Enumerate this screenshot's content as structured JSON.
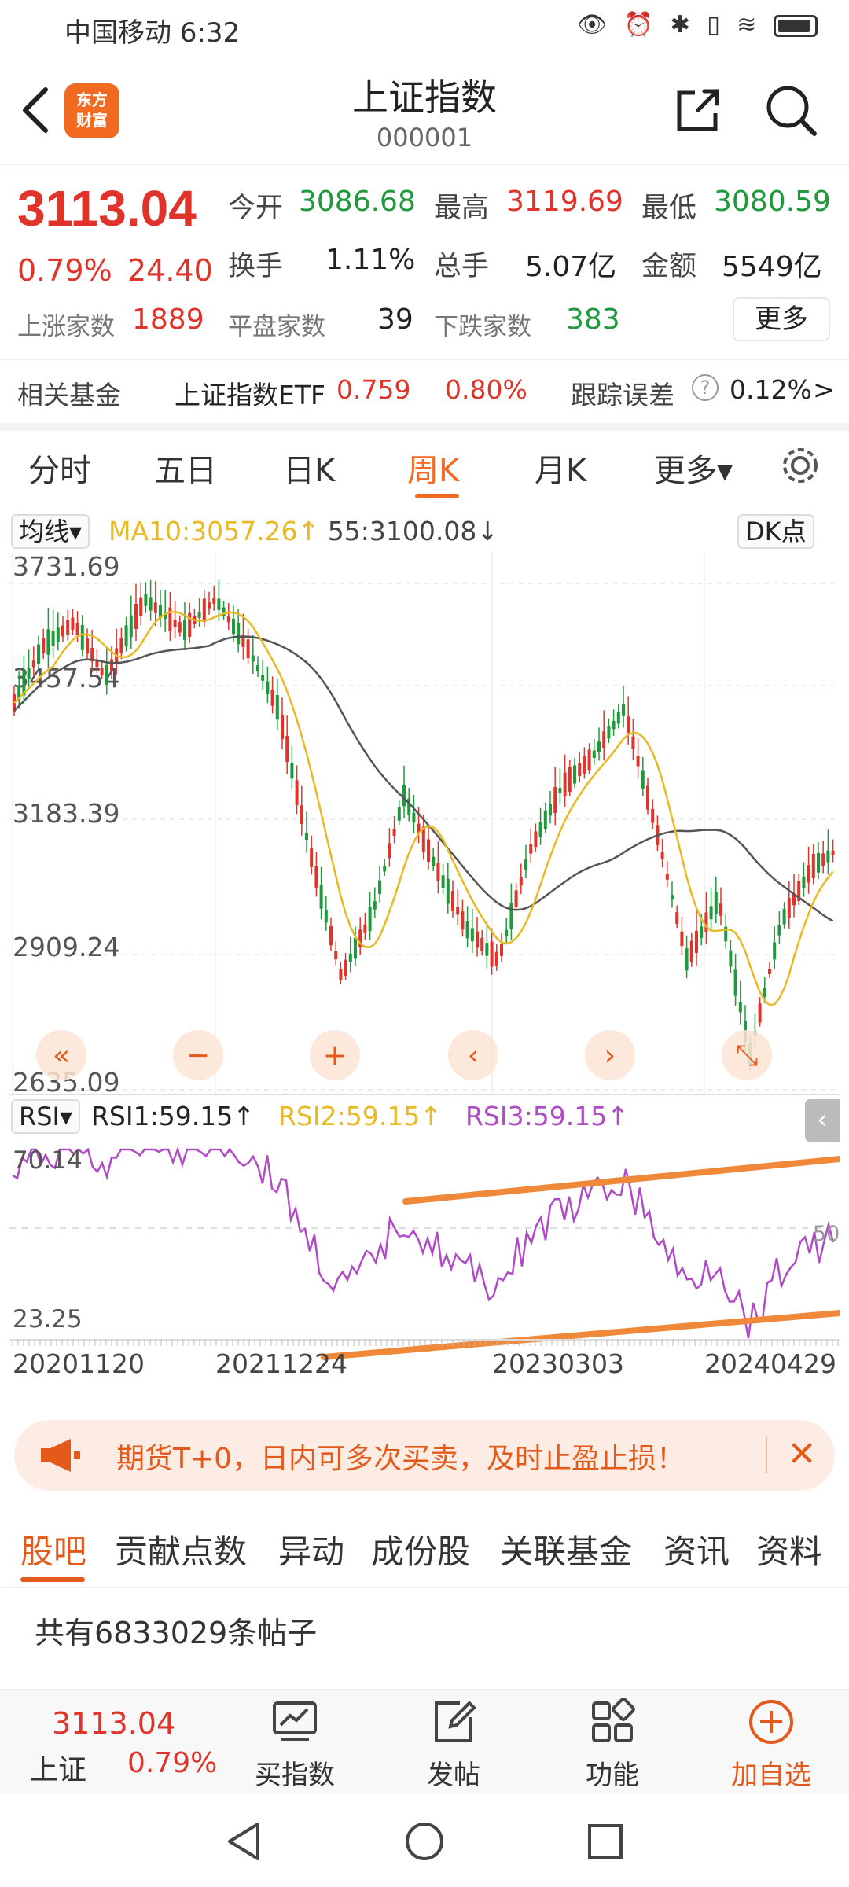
{
  "status_bar": {
    "carrier_time": "中国移动 6:32",
    "icons": "👁 ⏰ ✱ ▯ ≋"
  },
  "header": {
    "logo_line1": "东方",
    "logo_line2": "财富",
    "title": "上证指数",
    "code": "000001"
  },
  "quote": {
    "price": "3113.04",
    "change_pct": "0.79%",
    "change_abs": "24.40",
    "open_label": "今开",
    "open_value": "3086.68",
    "high_label": "最高",
    "high_value": "3119.69",
    "low_label": "最低",
    "low_value": "3080.59",
    "turnover_label": "换手",
    "turnover_value": "1.11%",
    "volume_label": "总手",
    "volume_value": "5.07亿",
    "amount_label": "金额",
    "amount_value": "5549亿",
    "up_label": "上涨家数",
    "up_value": "1889",
    "flat_label": "平盘家数",
    "flat_value": "39",
    "down_label": "下跌家数",
    "down_value": "383",
    "more_label": "更多"
  },
  "fund": {
    "label": "相关基金",
    "name": "上证指数ETF",
    "price": "0.759",
    "pct": "0.80%",
    "tracking_label": "跟踪误差",
    "tracking_value": "0.12%",
    "arrow": ">"
  },
  "period_tabs": [
    "分时",
    "五日",
    "日K",
    "周K",
    "月K",
    "更多▾"
  ],
  "active_period": "周K",
  "indicators": {
    "ma_selector": "均线▾",
    "ma10": "MA10:3057.26↑",
    "ma55": "55:3100.08↓",
    "dk_button": "DK点",
    "rsi_selector": "RSI▾",
    "rsi1": "RSI1:59.15↑",
    "rsi2": "RSI2:59.15↑",
    "rsi3": "RSI3:59.15↑",
    "rsi_top": "70.14",
    "rsi_mid": "50",
    "rsi_bottom": "23.25",
    "date_labels": [
      "20201120",
      "20211224",
      "20230303",
      "20240429"
    ],
    "price_axis": [
      "3731.69",
      "3457.54",
      "3183.39",
      "2909.24",
      "2635.09"
    ],
    "colors": {
      "up": "#e0342b",
      "down": "#1e9a3c",
      "ma10": "#e8b923",
      "ma55": "#555555",
      "rsi": "#b04bc6",
      "trend": "#f0883a"
    }
  },
  "chart_controls": [
    "«",
    "−",
    "+",
    "‹",
    "›",
    "⤡"
  ],
  "promo": {
    "text": "期货T+0，日内可多次买卖，及时止盈止损！",
    "close": "✕"
  },
  "content_tabs": [
    "股吧",
    "贡献点数",
    "异动",
    "成份股",
    "关联基金",
    "资讯",
    "资料"
  ],
  "post_count": "共有6833029条帖子",
  "bottom_bar": {
    "ticker_price": "3113.04",
    "ticker_name": "上证",
    "ticker_pct": "0.79%",
    "buy_index": "买指数",
    "post": "发帖",
    "functions": "功能",
    "add_watch": "加自选"
  }
}
